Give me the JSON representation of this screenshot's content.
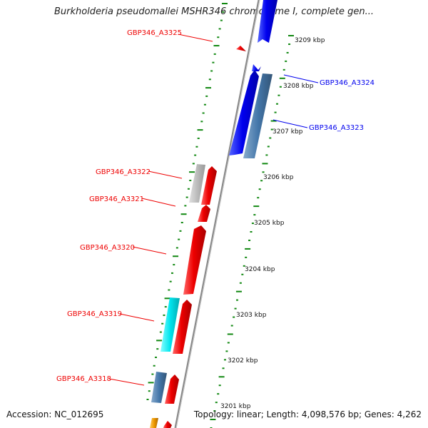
{
  "title": "Burkholderia pseudomallei MSHR346 chromosome I, complete gen...",
  "accession": "Accession: NC_012695",
  "summary": "Topology: linear; Length: 4,098,576 bp; Genes: 4,262",
  "colors": {
    "forward_gene": "#ee0000",
    "reverse_gene": "#0000ee",
    "steelblue_gene": "#4477aa",
    "gray_gene": "#bbbbbb",
    "cyan_gene": "#00e5ee",
    "orange_gene": "#ee9900",
    "tick_color": "#118811",
    "backbone": "#888888"
  },
  "scale_labels": [
    "3209 kbp",
    "3208 kbp",
    "3207 kbp",
    "3206 kbp",
    "3205 kbp",
    "3204 kbp",
    "3203 kbp",
    "3202 kbp",
    "3201 kbp"
  ],
  "gene_labels": [
    {
      "text": "GBP346_A3325",
      "color": "red"
    },
    {
      "text": "GBP346_A3324",
      "color": "blue"
    },
    {
      "text": "GBP346_A3323",
      "color": "blue"
    },
    {
      "text": "GBP346_A3322",
      "color": "red"
    },
    {
      "text": "GBP346_A3321",
      "color": "red"
    },
    {
      "text": "GBP346_A3320",
      "color": "red"
    },
    {
      "text": "GBP346_A3319",
      "color": "red"
    },
    {
      "text": "GBP346_A3318",
      "color": "red"
    }
  ]
}
